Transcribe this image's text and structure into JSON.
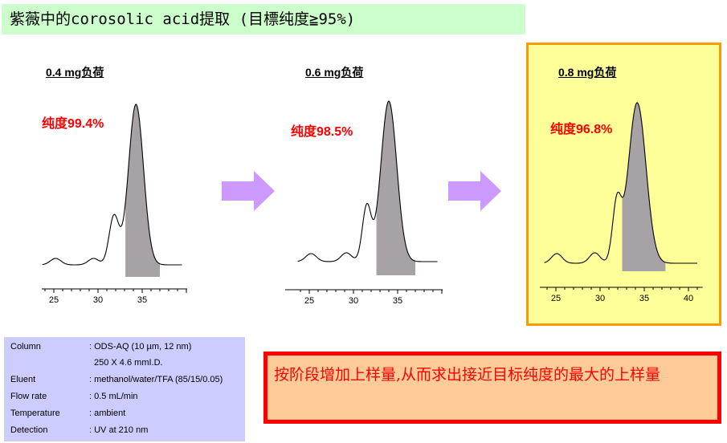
{
  "title": "紫薇中的corosolic acid提取  (目標纯度≧95%)",
  "panels": [
    {
      "load": "0.4 mg负荷",
      "purity": "纯度99.4%",
      "x_ticks": [
        "25",
        "30",
        "35"
      ],
      "highlighted": false
    },
    {
      "load": "0.6 mg负荷",
      "purity": "纯度98.5%",
      "x_ticks": [
        "25",
        "30",
        "35"
      ],
      "highlighted": false
    },
    {
      "load": "0.8 mg负荷",
      "purity": "纯度96.8%",
      "x_ticks": [
        "25",
        "30",
        "35",
        "40"
      ],
      "highlighted": true
    }
  ],
  "colors": {
    "title_bg": "#ccffcc",
    "arrow": "#cc99ff",
    "highlight_bg": "#ffff99",
    "highlight_border": "#ff9900",
    "purity": "#ff0000",
    "conditions_bg": "#ccccff",
    "note_bg": "#ffcc99",
    "note_border": "#ff0000",
    "peak_fill": "#a6a2a6"
  },
  "conditions": [
    {
      "key": "Column",
      "value": ": ODS-AQ (10 µm, 12 nm)"
    },
    {
      "key": "",
      "value": "  250 X 4.6  mmI.D."
    },
    {
      "key": "Eluent",
      "value": ": methanol/water/TFA  (85/15/0.05)"
    },
    {
      "key": "Flow rate",
      "value": ": 0.5 mL/min"
    },
    {
      "key": "Temperature",
      "value": ": ambient"
    },
    {
      "key": "Detection",
      "value": ": UV at 210 nm"
    }
  ],
  "note": "按阶段增加上样量,从而求出接近目标纯度的最大的上样量"
}
